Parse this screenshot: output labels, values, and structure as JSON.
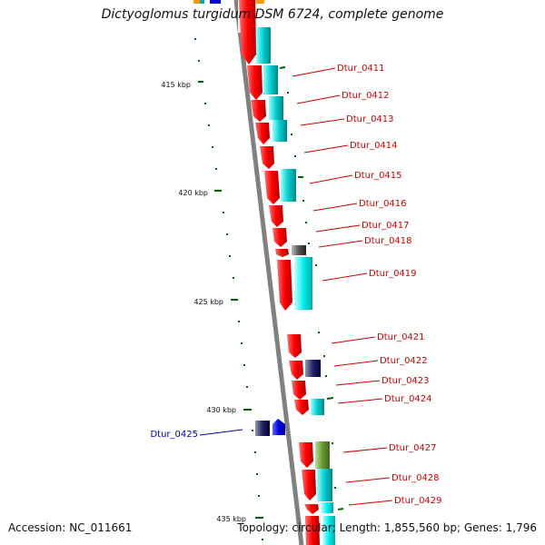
{
  "title": "Dictyoglomus turgidum DSM 6724, complete genome",
  "accession": "Accession: NC_011661",
  "summary": "Topology: circular; Length: 1,855,560 bp; Genes: 1,796",
  "colors": {
    "forward_gene": "#ff0000",
    "cds_cyan": "#00cccc",
    "label_red": "#cc0000",
    "label_blue": "#0000aa",
    "tick_green": "#006600",
    "backbone": "#808080",
    "rna_olive": "#669933",
    "reverse_blue": "#0000dd"
  },
  "scale_labels": [
    "415 kbp",
    "420 kbp",
    "425 kbp",
    "430 kbp",
    "435 kbp"
  ],
  "gene_labels": [
    {
      "text": "Dtur_0411",
      "strand": "forward"
    },
    {
      "text": "Dtur_0412",
      "strand": "forward"
    },
    {
      "text": "Dtur_0413",
      "strand": "forward"
    },
    {
      "text": "Dtur_0414",
      "strand": "forward"
    },
    {
      "text": "Dtur_0415",
      "strand": "forward"
    },
    {
      "text": "Dtur_0416",
      "strand": "forward"
    },
    {
      "text": "Dtur_0417",
      "strand": "forward"
    },
    {
      "text": "Dtur_0418",
      "strand": "forward"
    },
    {
      "text": "Dtur_0419",
      "strand": "forward"
    },
    {
      "text": "Dtur_0421",
      "strand": "forward"
    },
    {
      "text": "Dtur_0422",
      "strand": "forward"
    },
    {
      "text": "Dtur_0423",
      "strand": "forward"
    },
    {
      "text": "Dtur_0424",
      "strand": "forward"
    },
    {
      "text": "Dtur_0427",
      "strand": "forward"
    },
    {
      "text": "Dtur_0428",
      "strand": "forward"
    },
    {
      "text": "Dtur_0429",
      "strand": "forward"
    },
    {
      "text": "Dtur_0425",
      "strand": "reverse"
    }
  ]
}
